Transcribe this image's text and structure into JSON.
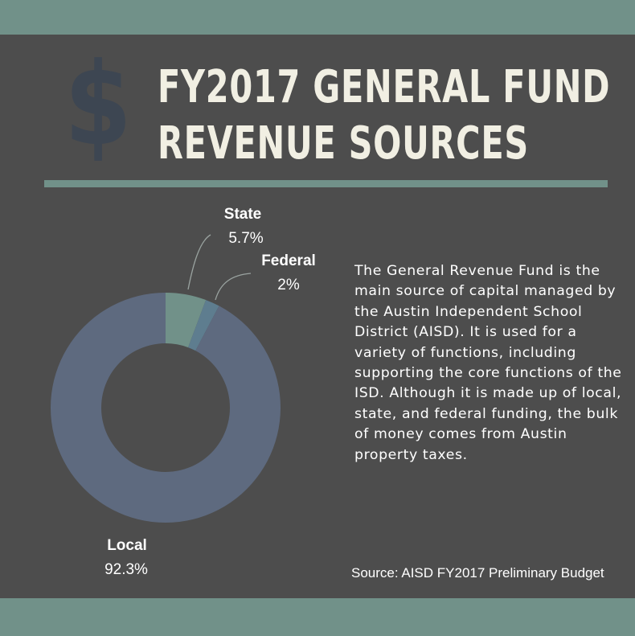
{
  "header": {
    "icon": "dollar-sign-icon",
    "icon_glyph": "$",
    "title_line1": "FY2017 GENERAL FUND",
    "title_line2": "REVENUE SOURCES"
  },
  "colors": {
    "band": "#719189",
    "background": "#4d4d4d",
    "title_text": "#f1efe3",
    "dollar": "#3d4652"
  },
  "chart_data": {
    "type": "pie",
    "donut": true,
    "series": [
      {
        "name": "State",
        "label": "5.7%",
        "value": 5.7,
        "color": "#719189"
      },
      {
        "name": "Federal",
        "label": "2%",
        "value": 2,
        "color": "#5e7d8f"
      },
      {
        "name": "Local",
        "label": "92.3%",
        "value": 92.3,
        "color": "#5e6a7f"
      }
    ]
  },
  "description": "The General Revenue Fund is the main source of capital managed by the Austin Independent School District (AISD).  It is used for a variety of functions, including supporting the core functions of the ISD. Although it is made up of local, state, and federal funding, the bulk of money comes from Austin property taxes.",
  "source": "Source: AISD FY2017 Preliminary Budget"
}
